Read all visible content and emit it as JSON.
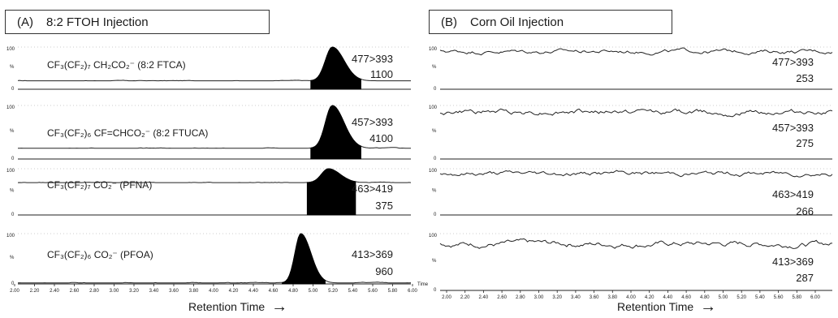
{
  "panels": [
    {
      "id": "A",
      "letter": "(A)",
      "title": "8:2 FTOH Injection",
      "xlabel": "Retention Time",
      "x_ticks": [
        "2.00",
        "2.20",
        "2.40",
        "2.60",
        "2.80",
        "3.00",
        "3.20",
        "3.40",
        "3.60",
        "3.80",
        "4.00",
        "4.20",
        "4.40",
        "4.60",
        "4.80",
        "5.00",
        "5.20",
        "5.40",
        "5.60",
        "5.80",
        "6.00"
      ],
      "time_unit": "Time",
      "traces": [
        {
          "compound": "CF₃(CF₂)₇ CH₂CO₂⁻ (8:2 FTCA)",
          "transition": "477>393",
          "intensity": "1100"
        },
        {
          "compound": "CF₃(CF₂)₆ CF=CHCO₂⁻ (8:2 FTUCA)",
          "transition": "457>393",
          "intensity": "4100"
        },
        {
          "compound": "CF₃(CF₂)₇ CO₂⁻ (PFNA)",
          "transition": "463>419",
          "intensity": "375"
        },
        {
          "compound": "CF₃(CF₂)₆ CO₂⁻ (PFOA)",
          "transition": "413>369",
          "intensity": "960"
        }
      ]
    },
    {
      "id": "B",
      "letter": "(B)",
      "title": "Corn Oil Injection",
      "xlabel": "Retention Time",
      "x_ticks": [
        "2.00",
        "2.20",
        "2.40",
        "2.60",
        "2.80",
        "3.00",
        "3.20",
        "3.40",
        "3.60",
        "3.80",
        "4.00",
        "4.20",
        "4.40",
        "4.60",
        "4.80",
        "5.00",
        "5.20",
        "5.40",
        "5.60",
        "5.80",
        "6.00"
      ],
      "traces": [
        {
          "transition": "477>393",
          "intensity": "253"
        },
        {
          "transition": "457>393",
          "intensity": "275"
        },
        {
          "transition": "463>419",
          "intensity": "266"
        },
        {
          "transition": "413>369",
          "intensity": "287"
        }
      ]
    }
  ],
  "y_tick_labels": {
    "top": "100",
    "mid": "%",
    "bottom": "0"
  },
  "chart_data": [
    {
      "type": "line",
      "title": "(A) 8:2 FTOH Injection",
      "xlabel": "Retention Time",
      "xlim": [
        2.0,
        6.0
      ],
      "ylim": [
        0,
        100
      ],
      "series": [
        {
          "name": "477>393",
          "baseline": 20,
          "peaks": [
            {
              "x": 5.2,
              "y": 100,
              "width": 0.07
            }
          ]
        },
        {
          "name": "457>393",
          "baseline": 20,
          "peaks": [
            {
              "x": 5.2,
              "y": 100,
              "width": 0.07
            }
          ]
        },
        {
          "name": "463>419",
          "baseline": 70,
          "peaks": [
            {
              "x": 5.16,
              "y": 100,
              "width": 0.07
            }
          ]
        },
        {
          "name": "413>369",
          "baseline": 2,
          "peaks": [
            {
              "x": 4.88,
              "y": 100,
              "width": 0.06
            }
          ]
        }
      ]
    },
    {
      "type": "line",
      "title": "(B) Corn Oil Injection",
      "xlabel": "Retention Time",
      "xlim": [
        2.0,
        6.0
      ],
      "ylim": [
        0,
        100
      ],
      "series": [
        {
          "name": "477>393",
          "baseline": 90,
          "peaks": []
        },
        {
          "name": "457>393",
          "baseline": 88,
          "peaks": []
        },
        {
          "name": "463>419",
          "baseline": 90,
          "peaks": []
        },
        {
          "name": "413>369",
          "baseline": 82,
          "peaks": []
        }
      ]
    }
  ]
}
